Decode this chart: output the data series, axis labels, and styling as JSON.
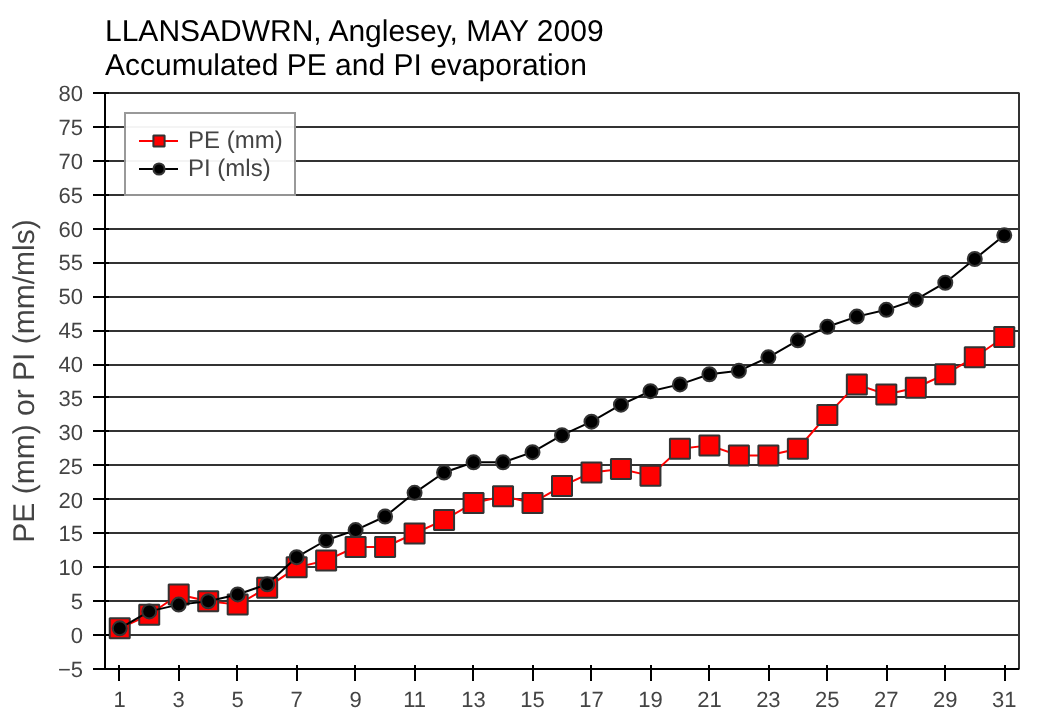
{
  "chart_data": {
    "type": "line",
    "title": "LLANSADWRN, Anglesey, MAY 2009\nAccumulated PE and PI evaporation",
    "ylabel": "PE (mm) or PI (mm/mls)",
    "x": [
      1,
      2,
      3,
      4,
      5,
      6,
      7,
      8,
      9,
      10,
      11,
      12,
      13,
      14,
      15,
      16,
      17,
      18,
      19,
      20,
      21,
      22,
      23,
      24,
      25,
      26,
      27,
      28,
      29,
      30,
      31
    ],
    "series": [
      {
        "name": "PE (mm)",
        "color": "#ff0000",
        "marker": "square",
        "values": [
          1,
          3,
          6,
          5,
          4.5,
          7,
          10,
          11,
          13,
          13,
          15,
          17,
          19.5,
          20.5,
          19.5,
          22,
          24,
          24.5,
          23.5,
          27.5,
          28,
          26.5,
          26.5,
          27.5,
          32.5,
          37,
          35.5,
          36.5,
          38.5,
          41,
          44
        ]
      },
      {
        "name": "PI (mls)",
        "color": "#000000",
        "marker": "circle",
        "values": [
          1,
          3.5,
          4.5,
          5,
          6,
          7.5,
          11.5,
          14,
          15.5,
          17.5,
          21,
          24,
          25.5,
          25.5,
          27,
          29.5,
          31.5,
          34,
          36,
          37,
          38.5,
          39,
          41,
          43.5,
          45.5,
          47,
          48,
          49.5,
          52,
          55.5,
          59
        ]
      }
    ],
    "xlim": [
      0.5,
      31.5
    ],
    "xticks": [
      1,
      3,
      5,
      7,
      9,
      11,
      13,
      15,
      17,
      19,
      21,
      23,
      25,
      27,
      29,
      31
    ],
    "ylim": [
      -5,
      80
    ],
    "yticks": [
      -5,
      0,
      5,
      10,
      15,
      20,
      25,
      30,
      35,
      40,
      45,
      50,
      55,
      60,
      65,
      70,
      75,
      80
    ],
    "grid": "y",
    "legend": "top left",
    "line_style": "solid"
  }
}
